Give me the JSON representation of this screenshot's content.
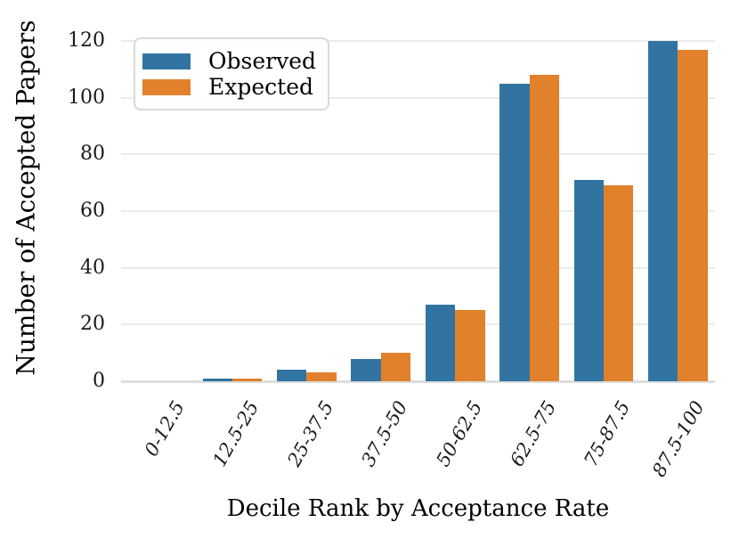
{
  "chart_data": {
    "type": "bar",
    "title": "",
    "xlabel": "Decile Rank by Acceptance Rate",
    "ylabel": "Number of Accepted Papers",
    "categories": [
      "0-12.5",
      "12.5-25",
      "25-37.5",
      "37.5-50",
      "50-62.5",
      "62.5-75",
      "75-87.5",
      "87.5-100"
    ],
    "series": [
      {
        "name": "Observed",
        "color": "#3274A1",
        "values": [
          0,
          1,
          4,
          8,
          27,
          105,
          71,
          120
        ]
      },
      {
        "name": "Expected",
        "color": "#E1812C",
        "values": [
          0,
          1,
          3,
          10,
          25,
          108,
          69,
          117
        ]
      }
    ],
    "yticks": [
      0,
      20,
      40,
      60,
      80,
      100,
      120
    ],
    "ylim": [
      0,
      128
    ],
    "grid": "horizontal",
    "gridline_color": "#EBEBEB",
    "background": "#FFFFFF",
    "legend_position": "upper-left",
    "xtick_rotation_deg": 60,
    "xtick_style": "italic"
  }
}
